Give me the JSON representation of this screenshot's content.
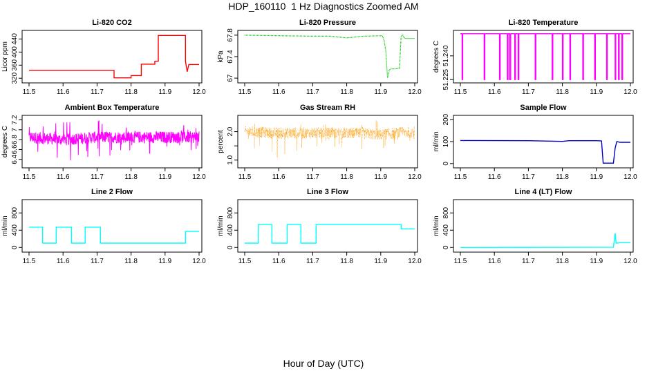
{
  "title": "HDP_160110  1 Hz Diagnostics Zoomed AM",
  "xlabel": "Hour of Day (UTC)",
  "chart_data": [
    {
      "type": "line",
      "title": "Li-820 CO2",
      "ylabel": "Licor ppm",
      "color": "#ff0000",
      "style": "step",
      "xlim": [
        11.5,
        12.0
      ],
      "ylim": [
        312,
        460
      ],
      "xticks": [
        11.5,
        11.6,
        11.7,
        11.8,
        11.9,
        12.0
      ],
      "yticks": [
        320,
        360,
        400,
        440
      ],
      "x": [
        11.5,
        11.75,
        11.75,
        11.8,
        11.8,
        11.83,
        11.83,
        11.87,
        11.87,
        11.88,
        11.88,
        11.96,
        11.96,
        11.965,
        11.97,
        12.0
      ],
      "y": [
        344,
        344,
        321,
        321,
        328,
        328,
        363,
        363,
        372,
        372,
        451,
        451,
        372,
        340,
        362,
        362
      ]
    },
    {
      "type": "line",
      "title": "Li-820 Pressure",
      "ylabel": "kPa",
      "color": "#00cc00",
      "style": "dots",
      "xlim": [
        11.5,
        12.0
      ],
      "ylim": [
        66.95,
        67.85
      ],
      "xticks": [
        11.5,
        11.6,
        11.7,
        11.8,
        11.9,
        12.0
      ],
      "yticks": [
        67.0,
        67.4,
        67.8
      ],
      "x": [
        11.5,
        11.6,
        11.7,
        11.75,
        11.8,
        11.85,
        11.905,
        11.91,
        11.915,
        11.92,
        11.925,
        11.93,
        11.955,
        11.96,
        11.965,
        11.97,
        12.0
      ],
      "y": [
        67.8,
        67.79,
        67.78,
        67.78,
        67.75,
        67.78,
        67.79,
        67.7,
        67.5,
        67.0,
        67.15,
        67.17,
        67.18,
        67.78,
        67.8,
        67.74,
        67.74
      ]
    },
    {
      "type": "line",
      "title": "Li-820 Temperature",
      "ylabel": "degrees C",
      "color": "#ff00ff",
      "style": "line",
      "xlim": [
        11.5,
        12.0
      ],
      "ylim": [
        51.2242,
        51.2548
      ],
      "xticks": [
        11.5,
        11.6,
        11.7,
        11.8,
        11.9,
        12.0
      ],
      "yticks": [
        51.225,
        51.24
      ],
      "ytick_labels": [
        "51.225",
        "51.240"
      ],
      "x": [
        11.5,
        11.505,
        11.505,
        11.507,
        11.507,
        11.57,
        11.57,
        11.572,
        11.572,
        11.615,
        11.615,
        11.617,
        11.617,
        11.638,
        11.638,
        11.64,
        11.64,
        11.645,
        11.645,
        11.648,
        11.648,
        11.66,
        11.66,
        11.662,
        11.662,
        11.67,
        11.67,
        11.672,
        11.672,
        11.72,
        11.72,
        11.722,
        11.722,
        11.77,
        11.77,
        11.772,
        11.772,
        11.8,
        11.8,
        11.802,
        11.802,
        11.822,
        11.822,
        11.824,
        11.824,
        11.86,
        11.86,
        11.862,
        11.862,
        11.895,
        11.895,
        11.897,
        11.897,
        11.93,
        11.93,
        11.932,
        11.932,
        11.955,
        11.955,
        11.957,
        11.957,
        11.965,
        11.965,
        11.967,
        11.967,
        11.975,
        11.975,
        11.977,
        11.977,
        12.0
      ],
      "y": [
        51.254,
        51.254,
        51.225,
        51.225,
        51.254,
        51.254,
        51.225,
        51.225,
        51.254,
        51.254,
        51.225,
        51.225,
        51.254,
        51.254,
        51.225,
        51.225,
        51.254,
        51.254,
        51.225,
        51.225,
        51.254,
        51.254,
        51.225,
        51.225,
        51.254,
        51.254,
        51.225,
        51.225,
        51.254,
        51.254,
        51.225,
        51.225,
        51.254,
        51.254,
        51.225,
        51.225,
        51.254,
        51.254,
        51.225,
        51.225,
        51.254,
        51.254,
        51.225,
        51.225,
        51.254,
        51.254,
        51.225,
        51.225,
        51.254,
        51.254,
        51.225,
        51.225,
        51.254,
        51.254,
        51.225,
        51.225,
        51.254,
        51.254,
        51.225,
        51.225,
        51.254,
        51.254,
        51.225,
        51.225,
        51.254,
        51.254,
        51.225,
        51.225,
        51.254,
        51.254
      ]
    },
    {
      "type": "line",
      "title": "Ambient Box Temperature",
      "ylabel": "degrees C",
      "color": "#ff00ff",
      "style": "noisy",
      "xlim": [
        11.5,
        12.0
      ],
      "ylim": [
        6.27,
        7.25
      ],
      "xticks": [
        11.5,
        11.6,
        11.7,
        11.8,
        11.9,
        12.0
      ],
      "yticks": [
        6.4,
        6.6,
        6.8,
        7.0,
        7.2
      ],
      "x": [
        11.5,
        11.6,
        11.7,
        11.8,
        11.9,
        12.0
      ],
      "y": [
        6.85,
        6.8,
        6.85,
        6.85,
        6.85,
        6.85
      ],
      "band": [
        0.12,
        0.12,
        0.12,
        0.12,
        0.12,
        0.12
      ],
      "spike_down": [
        6.5,
        6.3,
        6.45,
        6.5,
        6.5,
        6.55
      ],
      "spike_up": [
        7.1,
        7.2,
        7.2,
        7.15,
        7.1,
        7.1
      ]
    },
    {
      "type": "scatter",
      "title": "Gas Stream RH",
      "ylabel": "percent",
      "color": "#ff9900",
      "style": "noisy",
      "xlim": [
        11.5,
        12.0
      ],
      "ylim": [
        0.8,
        2.5
      ],
      "xticks": [
        11.5,
        11.6,
        11.7,
        11.8,
        11.9,
        12.0
      ],
      "yticks": [
        1.0,
        1.5,
        2.0
      ],
      "ytick_labels": [
        "1.0",
        "",
        "2.0"
      ],
      "x": [
        11.5,
        11.6,
        11.7,
        11.8,
        11.9,
        12.0
      ],
      "y": [
        2.0,
        1.95,
        1.95,
        1.95,
        1.9,
        2.0
      ],
      "band": [
        0.2,
        0.2,
        0.2,
        0.2,
        0.2,
        0.2
      ],
      "spike_down": [
        1.6,
        0.85,
        1.5,
        1.3,
        1.4,
        1.6
      ],
      "spike_up": [
        2.3,
        2.3,
        2.3,
        2.3,
        2.45,
        2.3
      ]
    },
    {
      "type": "line",
      "title": "Sample Flow",
      "ylabel": "ml/min",
      "color": "#0000cc",
      "style": "line",
      "xlim": [
        11.5,
        12.0
      ],
      "ylim": [
        -10,
        210
      ],
      "xticks": [
        11.5,
        11.6,
        11.7,
        11.8,
        11.9,
        12.0
      ],
      "yticks": [
        0,
        100,
        200
      ],
      "x": [
        11.5,
        11.7,
        11.8,
        11.82,
        11.9,
        11.915,
        11.92,
        11.95,
        11.955,
        11.96,
        11.97,
        12.0
      ],
      "y": [
        105,
        104,
        101,
        104,
        104,
        103,
        2,
        2,
        70,
        100,
        97,
        97
      ]
    },
    {
      "type": "line",
      "title": "Line 2 Flow",
      "ylabel": "ml/min",
      "color": "#00ffff",
      "style": "step",
      "xlim": [
        11.5,
        12.0
      ],
      "ylim": [
        -60,
        1060
      ],
      "xticks": [
        11.5,
        11.6,
        11.7,
        11.8,
        11.9,
        12.0
      ],
      "yticks": [
        0,
        400,
        800
      ],
      "x": [
        11.5,
        11.54,
        11.54,
        11.58,
        11.58,
        11.625,
        11.625,
        11.665,
        11.665,
        11.71,
        11.71,
        11.96,
        11.96,
        12.0
      ],
      "y": [
        470,
        470,
        100,
        100,
        470,
        470,
        100,
        100,
        470,
        470,
        100,
        100,
        370,
        370
      ]
    },
    {
      "type": "line",
      "title": "Line 3 Flow",
      "ylabel": "ml/min",
      "color": "#00ffff",
      "style": "step",
      "xlim": [
        11.5,
        12.0
      ],
      "ylim": [
        -60,
        1060
      ],
      "xticks": [
        11.5,
        11.6,
        11.7,
        11.8,
        11.9,
        12.0
      ],
      "yticks": [
        0,
        400,
        800
      ],
      "x": [
        11.5,
        11.54,
        11.54,
        11.58,
        11.58,
        11.625,
        11.625,
        11.665,
        11.665,
        11.71,
        11.71,
        11.96,
        11.96,
        12.0
      ],
      "y": [
        100,
        100,
        530,
        530,
        100,
        100,
        530,
        530,
        100,
        100,
        530,
        530,
        430,
        430
      ]
    },
    {
      "type": "line",
      "title": "Line 4 (LT) Flow",
      "ylabel": "ml/min",
      "color": "#00ffff",
      "style": "line",
      "xlim": [
        11.5,
        12.0
      ],
      "ylim": [
        -60,
        1060
      ],
      "xticks": [
        11.5,
        11.6,
        11.7,
        11.8,
        11.9,
        12.0
      ],
      "yticks": [
        0,
        400,
        800
      ],
      "x": [
        11.5,
        11.95,
        11.955,
        11.958,
        11.96,
        11.97,
        12.0
      ],
      "y": [
        0,
        5,
        330,
        100,
        100,
        110,
        110
      ]
    }
  ]
}
